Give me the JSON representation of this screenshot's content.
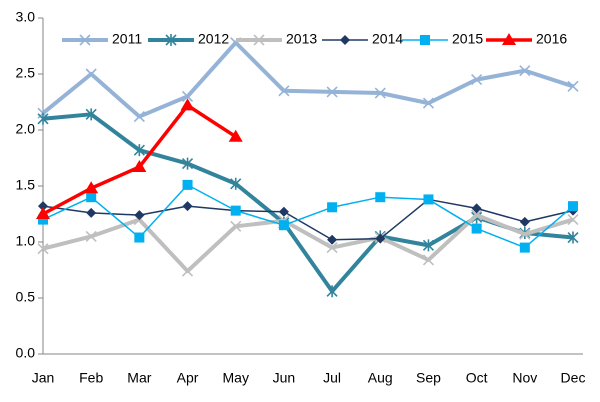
{
  "chart_data": {
    "type": "line",
    "categories": [
      "Jan",
      "Feb",
      "Mar",
      "Apr",
      "May",
      "Jun",
      "Jul",
      "Aug",
      "Sep",
      "Oct",
      "Nov",
      "Dec"
    ],
    "series": [
      {
        "name": "2011",
        "color": "#95b3d7",
        "marker": "x",
        "values": [
          2.15,
          2.5,
          2.12,
          2.3,
          2.78,
          2.35,
          2.34,
          2.33,
          2.24,
          2.45,
          2.53,
          2.39
        ]
      },
      {
        "name": "2012",
        "color": "#31849b",
        "marker": "asterisk",
        "values": [
          2.1,
          2.14,
          1.82,
          1.7,
          1.52,
          1.17,
          0.56,
          1.05,
          0.97,
          1.22,
          1.08,
          1.04
        ]
      },
      {
        "name": "2013",
        "color": "#bfbfbf",
        "marker": "x",
        "values": [
          0.94,
          1.05,
          1.2,
          0.74,
          1.14,
          1.19,
          0.95,
          1.04,
          0.84,
          1.24,
          1.07,
          1.2
        ]
      },
      {
        "name": "2014",
        "color": "#1f3864",
        "marker": "diamond",
        "values": [
          1.32,
          1.26,
          1.24,
          1.32,
          1.28,
          1.27,
          1.02,
          1.03,
          1.38,
          1.3,
          1.18,
          1.28
        ]
      },
      {
        "name": "2015",
        "color": "#00b0f0",
        "marker": "square",
        "values": [
          1.2,
          1.4,
          1.04,
          1.51,
          1.28,
          1.15,
          1.31,
          1.4,
          1.38,
          1.12,
          0.95,
          1.32
        ]
      },
      {
        "name": "2016",
        "color": "#ff0000",
        "marker": "triangle",
        "values": [
          1.25,
          1.48,
          1.67,
          2.22,
          1.94,
          null,
          null,
          null,
          null,
          null,
          null,
          null
        ]
      }
    ],
    "ylim": [
      0,
      3
    ],
    "yticks": [
      {
        "value": 0,
        "label": "0.0"
      },
      0.5,
      {
        "value": 1,
        "label": "1.0"
      },
      1.5,
      {
        "value": 2,
        "label": "2.0"
      },
      2.5,
      {
        "value": 3,
        "label": "3.0"
      }
    ],
    "grid": false,
    "legend": "top"
  }
}
